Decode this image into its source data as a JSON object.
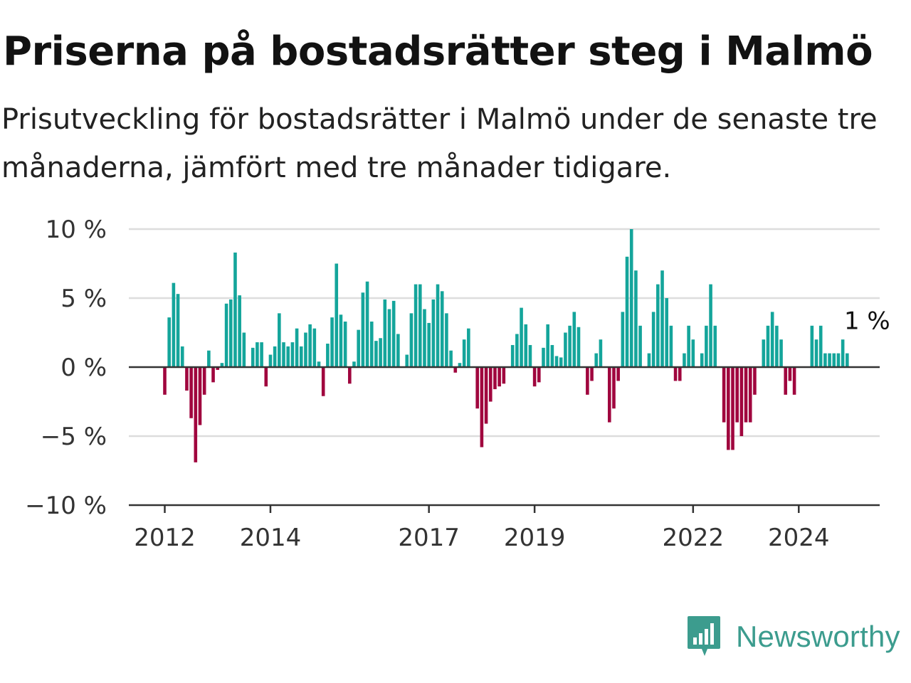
{
  "title": "Priserna på bostadsrätter steg i Malmö",
  "subtitle": "Prisutveckling för bostadsrätter i Malmö under de senaste tre månaderna, jämfört med tre månader tidigare.",
  "brand": {
    "name": "Newsworthy",
    "icon": "newsworthy-logo-icon"
  },
  "colors": {
    "positive": "#14a59b",
    "negative": "#a0063e",
    "grid": "#dddddd",
    "baseline": "#333333",
    "brand": "#3c9c8e"
  },
  "chart_data": {
    "type": "bar",
    "x_start": "2012-01",
    "interval": "month",
    "ylim": [
      -10,
      10
    ],
    "yticks": [
      {
        "value": 10,
        "label": "10 %"
      },
      {
        "value": 5,
        "label": "5 %"
      },
      {
        "value": 0,
        "label": "0 %"
      },
      {
        "value": -5,
        "label": "−5 %"
      },
      {
        "value": -10,
        "label": "−10 %"
      }
    ],
    "xticks": [
      {
        "year": 2012,
        "label": "2012"
      },
      {
        "year": 2014,
        "label": "2014"
      },
      {
        "year": 2017,
        "label": "2017"
      },
      {
        "year": 2019,
        "label": "2019"
      },
      {
        "year": 2022,
        "label": "2022"
      },
      {
        "year": 2024,
        "label": "2024"
      }
    ],
    "grid": true,
    "values": [
      -2,
      3.6,
      6.1,
      5.3,
      1.5,
      -1.7,
      -3.7,
      -6.9,
      -4.2,
      -2,
      1.2,
      -1.1,
      -0.2,
      0.3,
      4.6,
      4.9,
      8.3,
      5.2,
      2.5,
      0,
      1.4,
      1.8,
      1.8,
      -1.4,
      0.9,
      1.5,
      3.9,
      1.8,
      1.5,
      1.8,
      2.8,
      1.5,
      2.5,
      3.1,
      2.8,
      0.4,
      -2.1,
      1.7,
      3.6,
      7.5,
      3.8,
      3.3,
      -1.2,
      0.4,
      2.7,
      5.4,
      6.2,
      3.3,
      1.9,
      2.1,
      4.9,
      4.2,
      4.8,
      2.4,
      0,
      0.9,
      3.9,
      6,
      6,
      4.2,
      3.2,
      4.9,
      6,
      5.5,
      3.9,
      1.2,
      -0.4,
      0.3,
      2,
      2.8,
      0,
      -3,
      -5.8,
      -4.1,
      -2.5,
      -1.6,
      -1.4,
      -1.2,
      0,
      1.6,
      2.4,
      4.3,
      3.1,
      1.6,
      -1.4,
      -1.1,
      1.4,
      3.1,
      1.6,
      0.8,
      0.7,
      2.5,
      3,
      4,
      2.9,
      0,
      -2,
      -1,
      1,
      2,
      0,
      -4,
      -3,
      -1,
      4,
      8,
      10,
      7,
      3,
      0,
      1,
      4,
      6,
      7,
      5,
      3,
      -1,
      -1,
      1,
      3,
      2,
      0,
      1,
      3,
      6,
      3,
      0,
      -4,
      -6,
      -6,
      -4,
      -5,
      -4,
      -4,
      -2,
      0,
      2,
      3,
      4,
      3,
      2,
      -2,
      -1,
      -2,
      0,
      0,
      0,
      3,
      2,
      3,
      1,
      1,
      1,
      1,
      2,
      1
    ],
    "last_label": "1 %"
  }
}
